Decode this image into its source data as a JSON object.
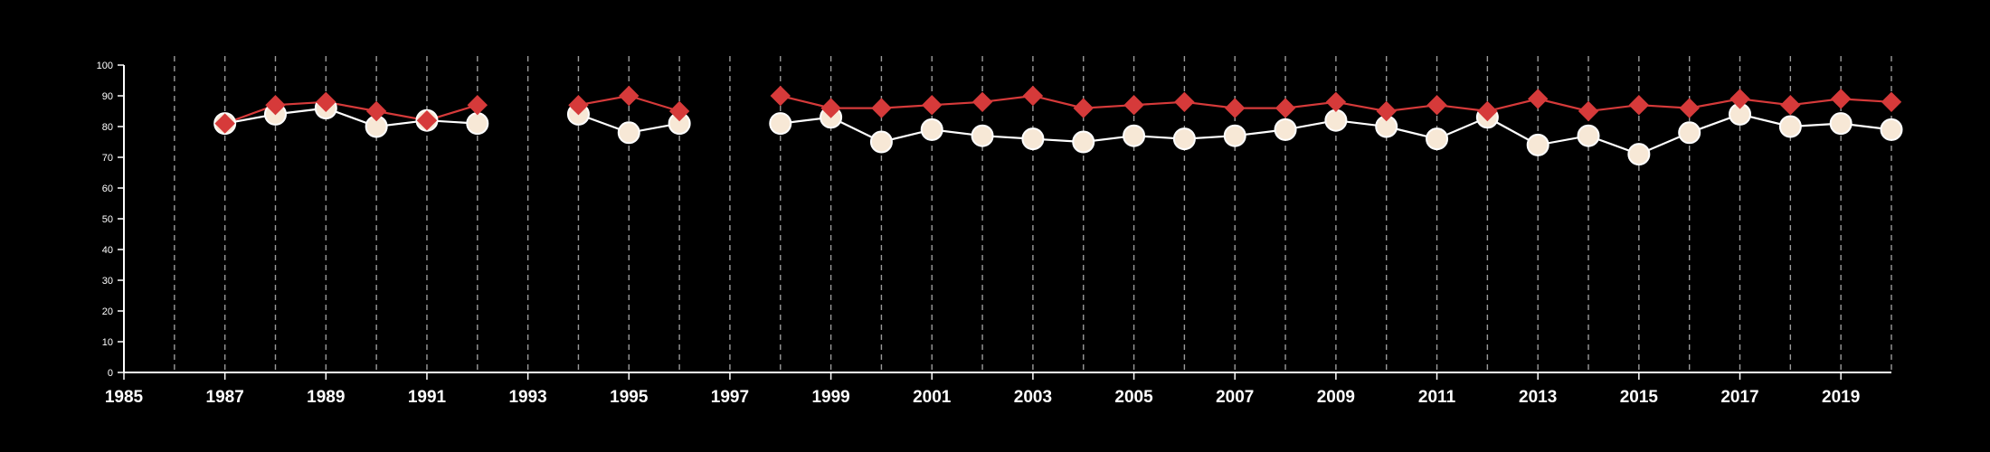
{
  "chart_data": {
    "type": "line",
    "title": "",
    "xlabel": "",
    "ylabel": "",
    "xlim": [
      1985,
      2020
    ],
    "ylim": [
      0,
      100
    ],
    "x_ticks": [
      "1985",
      "1987",
      "1989",
      "1991",
      "1993",
      "1995",
      "1997",
      "1999",
      "2001",
      "2003",
      "2005",
      "2007",
      "2009",
      "2011",
      "2013",
      "2015",
      "2017",
      "2019"
    ],
    "y_ticks": [
      "0",
      "10",
      "20",
      "30",
      "40",
      "50",
      "60",
      "70",
      "80",
      "90",
      "100"
    ],
    "grid": "vertical dashed lines at each year",
    "x": [
      1987,
      1988,
      1989,
      1990,
      1991,
      1992,
      1993,
      1994,
      1995,
      1996,
      1997,
      1998,
      1999,
      2000,
      2001,
      2002,
      2003,
      2004,
      2005,
      2006,
      2007,
      2008,
      2009,
      2010,
      2011,
      2012,
      2013,
      2014,
      2015,
      2016,
      2017,
      2018,
      2019,
      2020
    ],
    "series": [
      {
        "marker": "diamond",
        "color": "#d63a3a",
        "values": [
          81,
          87,
          88,
          85,
          82,
          87,
          null,
          87,
          90,
          85,
          null,
          90,
          86,
          86,
          87,
          88,
          90,
          86,
          87,
          88,
          86,
          86,
          88,
          85,
          87,
          85,
          89,
          85,
          87,
          86,
          89,
          87,
          89,
          88
        ]
      },
      {
        "marker": "circle",
        "color": "#f7e8d6",
        "values": [
          81,
          84,
          86,
          80,
          82,
          81,
          null,
          84,
          78,
          81,
          null,
          81,
          83,
          75,
          79,
          77,
          76,
          75,
          77,
          76,
          77,
          79,
          82,
          80,
          76,
          83,
          74,
          77,
          71,
          78,
          84,
          80,
          81,
          79
        ]
      }
    ]
  }
}
